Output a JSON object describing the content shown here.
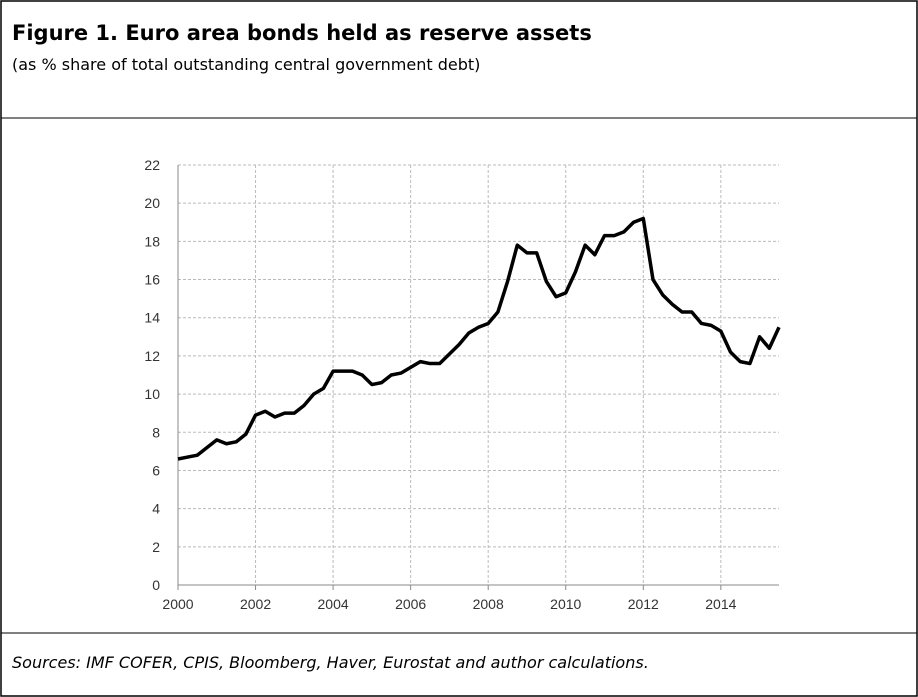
{
  "chart_data": {
    "type": "line",
    "title": "Figure 1. Euro area bonds held as reserve assets",
    "subtitle": "(as % share of total outstanding central government debt)",
    "source": "Sources: IMF COFER, CPIS, Bloomberg, Haver, Eurostat and author calculations.",
    "x": [
      2000.0,
      2000.25,
      2000.5,
      2000.75,
      2001.0,
      2001.25,
      2001.5,
      2001.75,
      2002.0,
      2002.25,
      2002.5,
      2002.75,
      2003.0,
      2003.25,
      2003.5,
      2003.75,
      2004.0,
      2004.25,
      2004.5,
      2004.75,
      2005.0,
      2005.25,
      2005.5,
      2005.75,
      2006.0,
      2006.25,
      2006.5,
      2006.75,
      2007.0,
      2007.25,
      2007.5,
      2007.75,
      2008.0,
      2008.25,
      2008.5,
      2008.75,
      2009.0,
      2009.25,
      2009.5,
      2009.75,
      2010.0,
      2010.25,
      2010.5,
      2010.75,
      2011.0,
      2011.25,
      2011.5,
      2011.75,
      2012.0,
      2012.25,
      2012.5,
      2012.75,
      2013.0,
      2013.25,
      2013.5,
      2013.75,
      2014.0,
      2014.25,
      2014.5,
      2014.75,
      2015.0,
      2015.25,
      2015.5
    ],
    "series": [
      {
        "color": "#000000",
        "values": [
          6.6,
          6.7,
          6.8,
          7.2,
          7.6,
          7.4,
          7.5,
          7.9,
          8.9,
          9.1,
          8.8,
          9.0,
          9.0,
          9.4,
          10.0,
          10.3,
          11.2,
          11.2,
          11.2,
          11.0,
          10.5,
          10.6,
          11.0,
          11.1,
          11.4,
          11.7,
          11.6,
          11.6,
          12.1,
          12.6,
          13.2,
          13.5,
          13.7,
          14.3,
          15.9,
          17.8,
          17.4,
          17.4,
          15.9,
          15.1,
          15.3,
          16.4,
          17.8,
          17.3,
          18.3,
          18.3,
          18.5,
          19.0,
          19.2,
          16.0,
          15.2,
          14.7,
          14.3,
          14.3,
          13.7,
          13.6,
          13.3,
          12.2,
          11.7,
          11.6,
          13.0,
          12.4,
          13.5
        ]
      }
    ],
    "xlim": [
      2000,
      2015.5
    ],
    "xticks": [
      2000,
      2002,
      2004,
      2006,
      2008,
      2010,
      2012,
      2014
    ],
    "ylim": [
      0,
      22
    ],
    "yticks": [
      0,
      2,
      4,
      6,
      8,
      10,
      12,
      14,
      16,
      18,
      20,
      22
    ],
    "grid": true
  }
}
